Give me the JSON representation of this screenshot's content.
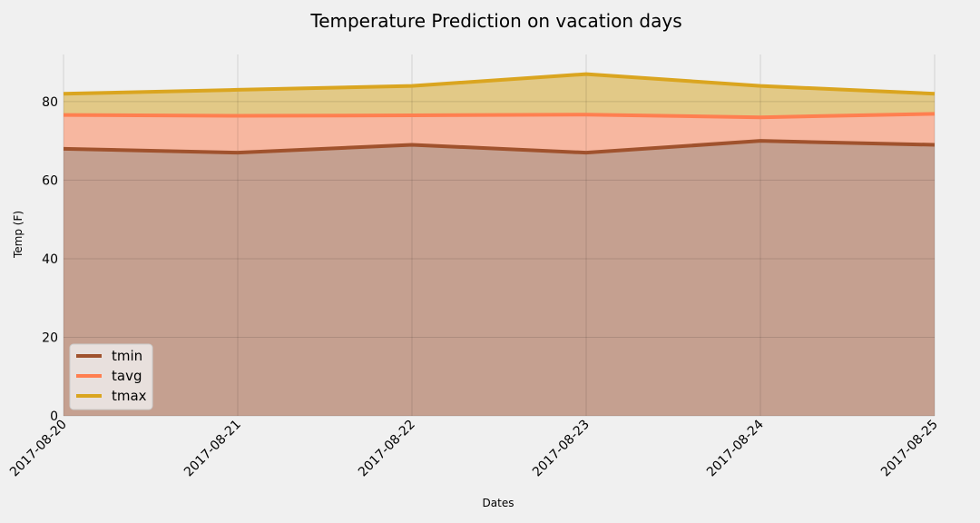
{
  "chart_data": {
    "type": "area",
    "title": "Temperature Prediction on vacation days",
    "xlabel": "Dates",
    "ylabel": "Temp (F)",
    "categories": [
      "2017-08-20",
      "2017-08-21",
      "2017-08-22",
      "2017-08-23",
      "2017-08-24",
      "2017-08-25"
    ],
    "ylim": [
      0,
      92
    ],
    "yticks": [
      0,
      20,
      40,
      60,
      80
    ],
    "grid": true,
    "stacked": false,
    "legend_position": "lower-left",
    "series": [
      {
        "name": "tmin",
        "values": [
          68.0,
          67.0,
          69.0,
          67.0,
          70.0,
          69.0
        ],
        "line_color": "#a0522d",
        "fill_color": "#c5a090"
      },
      {
        "name": "tavg",
        "values": [
          76.6,
          76.4,
          76.5,
          76.7,
          76.0,
          76.9
        ],
        "line_color": "#ff7f50",
        "fill_color": "#f7b7a0"
      },
      {
        "name": "tmax",
        "values": [
          82.0,
          83.0,
          84.0,
          87.0,
          84.0,
          82.0
        ],
        "line_color": "#daa520",
        "fill_color": "#e2c987"
      }
    ]
  }
}
